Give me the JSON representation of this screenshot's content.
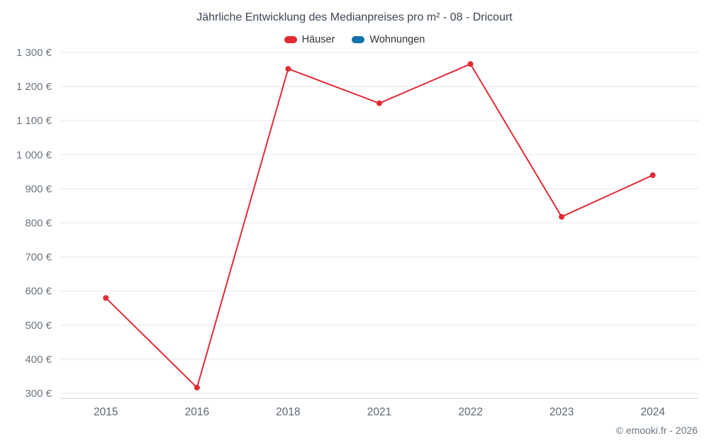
{
  "title": "Jährliche Entwicklung des Medianpreises pro m² - 08 - Dricourt",
  "copyright": "© emooki.fr - 2026",
  "legend": [
    {
      "label": "Häuser",
      "color": "#e02b35"
    },
    {
      "label": "Wohnungen",
      "color": "#0f72a8"
    }
  ],
  "chart_data": {
    "type": "line",
    "title": "Jährliche Entwicklung des Medianpreises pro m² - 08 - Dricourt",
    "categories": [
      "2015",
      "2016",
      "2018",
      "2021",
      "2022",
      "2023",
      "2024"
    ],
    "series": [
      {
        "name": "Häuser",
        "color": "#e02b35",
        "values": [
          580,
          317,
          1252,
          1151,
          1266,
          818,
          940
        ]
      },
      {
        "name": "Wohnungen",
        "color": "#0f72a8",
        "values": []
      }
    ],
    "xlabel": "",
    "ylabel": "",
    "ylim": [
      300,
      1300
    ],
    "ytick_step": 100,
    "ytick_suffix": " €",
    "grid": true,
    "legend_position": "top",
    "colors": {
      "gridline": "#e8e8e8",
      "axis_line": "#ccd3da",
      "y_tick_text": "#6b7680",
      "x_tick_text": "#5d6873"
    }
  }
}
